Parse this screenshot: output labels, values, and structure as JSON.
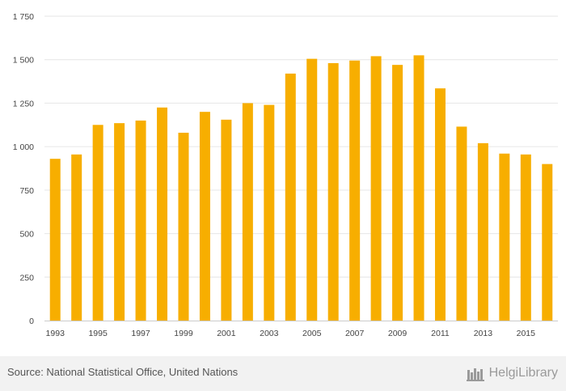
{
  "chart_data": {
    "type": "bar",
    "title": "",
    "xlabel": "",
    "ylabel": "",
    "categories": [
      "1993",
      "1994",
      "1995",
      "1996",
      "1997",
      "1998",
      "1999",
      "2000",
      "2001",
      "2002",
      "2003",
      "2004",
      "2005",
      "2006",
      "2007",
      "2008",
      "2009",
      "2010",
      "2011",
      "2012",
      "2013",
      "2014",
      "2015",
      "2016"
    ],
    "x_tick_labels": [
      "1993",
      "1995",
      "1997",
      "1999",
      "2001",
      "2003",
      "2005",
      "2007",
      "2009",
      "2011",
      "2013",
      "2015"
    ],
    "values": [
      930,
      955,
      1125,
      1135,
      1150,
      1225,
      1080,
      1200,
      1155,
      1250,
      1240,
      1420,
      1505,
      1480,
      1495,
      1520,
      1470,
      1525,
      1335,
      1115,
      1020,
      960,
      955,
      900
    ],
    "ylim": [
      0,
      1750
    ],
    "y_ticks": [
      0,
      250,
      500,
      750,
      1000,
      1250,
      1500,
      1750
    ],
    "y_tick_labels": [
      "0",
      "250",
      "500",
      "750",
      "1 000",
      "1 250",
      "1 500",
      "1 750"
    ],
    "bar_color": "#F7AE00",
    "grid_color": "#e6e6e6",
    "grid": true,
    "legend": "none"
  },
  "footer": {
    "source": "Source: National Statistical Office, United Nations",
    "logo_text": "HelgiLibrary"
  }
}
